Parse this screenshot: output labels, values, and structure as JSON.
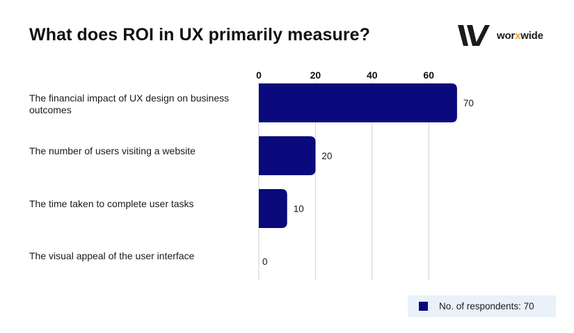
{
  "title": "What does ROI in UX primarily measure?",
  "logo": {
    "text_main": "wor",
    "text_accent": "x",
    "text_end": "wide"
  },
  "colors": {
    "bar": "#0a0a7c",
    "grid": "#cfcfcf",
    "text": "#1a1a1a",
    "legend_bg": "#e9f1fa",
    "logo_accent": "#f0a020"
  },
  "legend": {
    "label": "No. of respondents: 70"
  },
  "chart_data": {
    "type": "bar",
    "orientation": "horizontal",
    "title": "What does ROI in UX primarily measure?",
    "categories": [
      "The financial impact of UX design on business outcomes",
      "The number of users visiting a website",
      "The time taken to complete user tasks",
      "The visual appeal of the user interface"
    ],
    "values": [
      70,
      20,
      10,
      0
    ],
    "series": [
      {
        "name": "No. of respondents: 70",
        "values": [
          70,
          20,
          10,
          0
        ]
      }
    ],
    "xticks": [
      0,
      20,
      40,
      60
    ],
    "xlim": [
      0,
      70
    ],
    "xlabel": "",
    "ylabel": "",
    "grid": true,
    "axis_position": "top",
    "legend_position": "bottom-right"
  }
}
